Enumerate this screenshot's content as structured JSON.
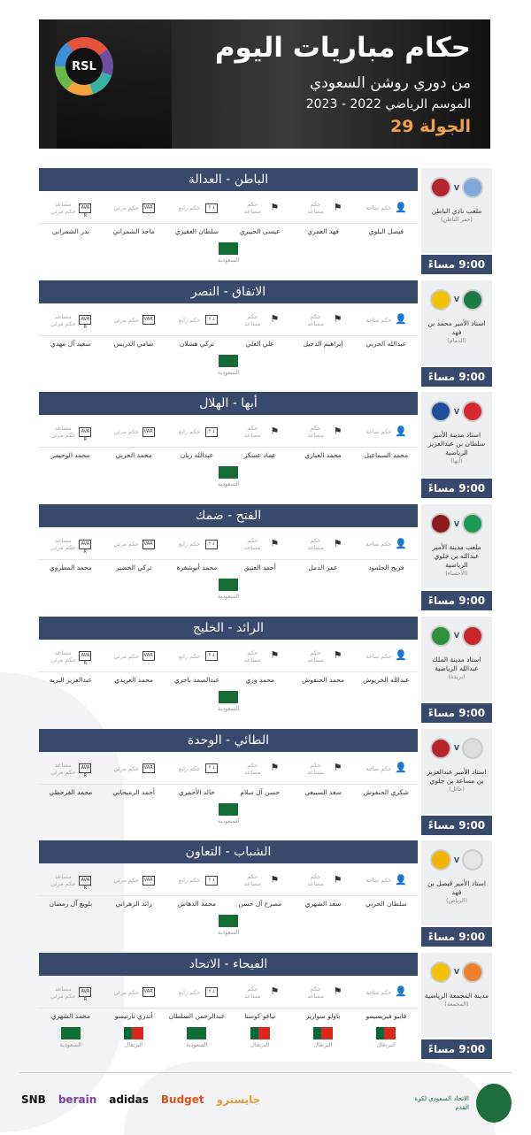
{
  "header": {
    "title": "حكام مباريات اليوم",
    "subtitle": "من دوري روشن السعودي",
    "season": "الموسم الرياضي 2022 - 2023",
    "round": "الجولة 29",
    "logo_text": "RSL"
  },
  "roles": [
    {
      "label": "حكم ساحة",
      "icon": "referee-icon",
      "glyph": "👤"
    },
    {
      "label": "حكم مساعد",
      "icon": "flag-icon",
      "glyph": "⚑"
    },
    {
      "label": "حكم مساعد",
      "icon": "flag-icon",
      "glyph": "⚑"
    },
    {
      "label": "حكم رابع",
      "icon": "substitution-board-icon",
      "glyph": "↑↓"
    },
    {
      "label": "حكم مرئي",
      "icon": "var-icon",
      "glyph": "VAR"
    },
    {
      "label": "مساعد حكم مرئي",
      "icon": "avar-icon",
      "glyph": "AVAR"
    }
  ],
  "colors": {
    "bar": "#384a6b",
    "accent": "#f0a04b",
    "saudi_green": "#126c34"
  },
  "matches": [
    {
      "teams": "الباطن - العدالة",
      "stadium": "ملعب نادي الباطن",
      "city": "(حفر الباطن)",
      "time": "9:00 مساءً",
      "home_color": "#7fa8d8",
      "away_color": "#b3262e",
      "referees": [
        "فيصل البلوي",
        "فهد العمري",
        "عيسى الحبيري",
        "سلطان العقيري",
        "ماجد الشمراني",
        "بدر الشمراني"
      ],
      "nationalities": [
        "السعودية"
      ]
    },
    {
      "teams": "الاتفاق - النصر",
      "stadium": "استاد الأمير محمد بن فهد",
      "city": "(الدمام)",
      "time": "9:00 مساءً",
      "home_color": "#1c7a45",
      "away_color": "#f2c200",
      "referees": [
        "عبدالله الحربي",
        "إبراهيم الدحيل",
        "علي العلي",
        "تركي هشلان",
        "سامي الدريس",
        "سعيد آل مهدي"
      ],
      "nationalities": [
        "السعودية"
      ]
    },
    {
      "teams": "أبها - الهلال",
      "stadium": "استاد مدينة الأمير سلطان بن عبدالعزيز الرياضية",
      "city": "(أبها)",
      "time": "9:00 مساءً",
      "home_color": "#d8282f",
      "away_color": "#1f4e9e",
      "referees": [
        "محمد السماعيل",
        "محمد العباري",
        "عماد عسكر",
        "عبدالله زبان",
        "محمد الحربي",
        "محمد الوحيمر"
      ],
      "nationalities": [
        "السعودية"
      ]
    },
    {
      "teams": "الفتح - ضمك",
      "stadium": "ملعب مدينة الأمير عبدالله بن جلوي الرياضية",
      "city": "(الأحساء)",
      "time": "9:00 مساءً",
      "home_color": "#1d9a55",
      "away_color": "#8c1c1c",
      "referees": [
        "فريح الجلمود",
        "عمر الدمل",
        "أحمد العتيق",
        "محمد أبوشقرة",
        "تركي الخضير",
        "محمد المطروي"
      ],
      "nationalities": [
        "السعودية"
      ]
    },
    {
      "teams": "الرائد - الخليج",
      "stadium": "استاد مدينة الملك عبدالله الرياضية",
      "city": "(بريدة)",
      "time": "9:00 مساءً",
      "home_color": "#c9262c",
      "away_color": "#2f8f3a",
      "referees": [
        "عبدالله الخريوش",
        "محمد الحنفوش",
        "محمد وزي",
        "عبدالصمد باجري",
        "محمد العريدي",
        "عبدالعزيز البريه"
      ],
      "nationalities": [
        "السعودية"
      ]
    },
    {
      "teams": "الطائي - الوحدة",
      "stadium": "استاد الأمير عبدالعزيز بن مساعد بن جلوي",
      "city": "(حائل)",
      "time": "9:00 مساءً",
      "home_color": "#dddddd",
      "away_color": "#b5252a",
      "referees": [
        "شكري الحنفوش",
        "سعد السبيعي",
        "حسن آل سلام",
        "خالد الأحمري",
        "أحمد الرميحاني",
        "محمد الفرحطي"
      ],
      "nationalities": [
        "السعودية"
      ]
    },
    {
      "teams": "الشباب - التعاون",
      "stadium": "استاد الأمير فيصل بن فهد",
      "city": "(الرياض)",
      "time": "9:00 مساءً",
      "home_color": "#e6e6e6",
      "away_color": "#f2b400",
      "referees": [
        "سلطان الحربي",
        "سعد الشهري",
        "مصرح آل حسن",
        "محمد الدهاش",
        "رائد الزهراني",
        "بلويع آل رمضان"
      ],
      "nationalities": [
        "السعودية"
      ]
    },
    {
      "teams": "الفيحاء - الاتحاد",
      "stadium": "مدينة المجمعة الرياضية",
      "city": "(المجمعة)",
      "time": "9:00 مساءً",
      "home_color": "#f07f2a",
      "away_color": "#f2c200",
      "referees": [
        "فابيو فيريسيمو",
        "باولو سواريز",
        "تياغو كوستا",
        "عبدالرحمن السلطان",
        "أندري نارتيسو",
        "محمد الشهري"
      ],
      "nationalities": [
        "البرتغال",
        "البرتغال",
        "البرتغال",
        "السعودية",
        "البرتغال",
        "السعودية"
      ]
    }
  ],
  "footer": {
    "federation": "الاتحاد السعودي لكرة القدم",
    "sponsors": [
      "SNB",
      "berain",
      "adidas",
      "Budget",
      "جايسترو"
    ]
  }
}
